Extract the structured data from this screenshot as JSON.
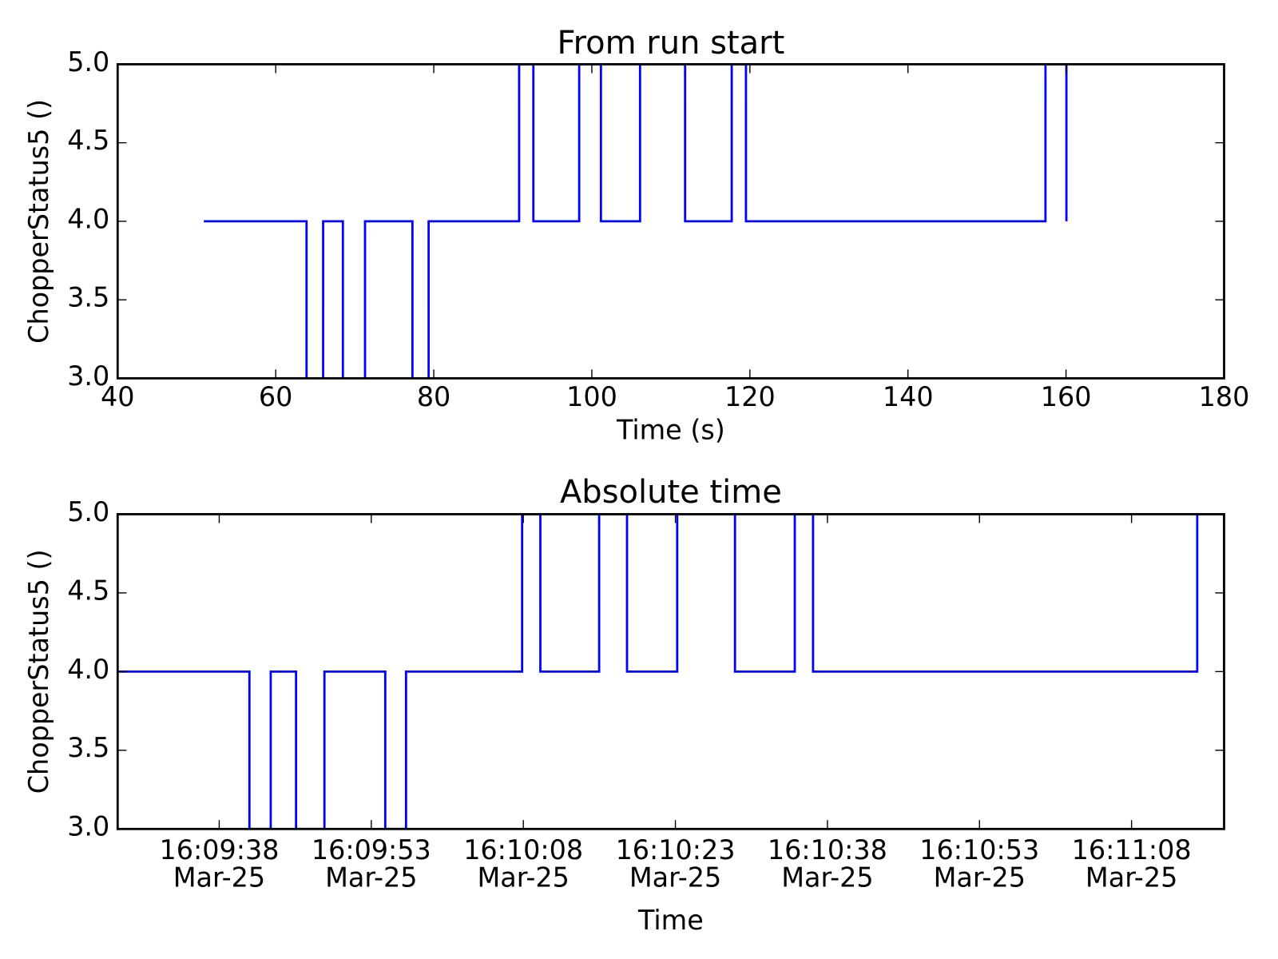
{
  "figure": {
    "background": "#ffffff",
    "axis_color": "#000000",
    "text_color": "#000000",
    "line_color": "#0000ff"
  },
  "chart_data": [
    {
      "type": "line",
      "step": "post",
      "title": "From run start",
      "xlabel": "Time (s)",
      "ylabel": "ChopperStatus5 ()",
      "xlim": [
        40,
        180
      ],
      "ylim": [
        3.0,
        5.0
      ],
      "grid": false,
      "legend": null,
      "xticks": [
        {
          "x": 40,
          "label": "40"
        },
        {
          "x": 60,
          "label": "60"
        },
        {
          "x": 80,
          "label": "80"
        },
        {
          "x": 100,
          "label": "100"
        },
        {
          "x": 120,
          "label": "120"
        },
        {
          "x": 140,
          "label": "140"
        },
        {
          "x": 160,
          "label": "160"
        },
        {
          "x": 180,
          "label": "180"
        }
      ],
      "yticks": [
        {
          "y": 3.0,
          "label": "3.0"
        },
        {
          "y": 3.5,
          "label": "3.5"
        },
        {
          "y": 4.0,
          "label": "4.0"
        },
        {
          "y": 4.5,
          "label": "4.5"
        },
        {
          "y": 5.0,
          "label": "5.0"
        }
      ],
      "points": [
        [
          50.9,
          4
        ],
        [
          63.9,
          3
        ],
        [
          66.0,
          4
        ],
        [
          68.5,
          3
        ],
        [
          71.3,
          4
        ],
        [
          77.3,
          3
        ],
        [
          79.35,
          4
        ],
        [
          90.8,
          5
        ],
        [
          92.6,
          4
        ],
        [
          98.4,
          5
        ],
        [
          101.15,
          4
        ],
        [
          106.1,
          5
        ],
        [
          111.8,
          4
        ],
        [
          117.7,
          5
        ],
        [
          119.5,
          4
        ],
        [
          157.4,
          5
        ],
        [
          160.05,
          4
        ]
      ]
    },
    {
      "type": "line",
      "step": "post",
      "title": "Absolute time",
      "xlabel": "Time",
      "ylabel": "ChopperStatus5 ()",
      "xlim": [
        50.9,
        160.05
      ],
      "ylim": [
        3.0,
        5.0
      ],
      "grid": false,
      "legend": null,
      "xticks": [
        {
          "x": 60.92,
          "label": [
            "16:09:38",
            "Mar-25"
          ]
        },
        {
          "x": 75.92,
          "label": [
            "16:09:53",
            "Mar-25"
          ]
        },
        {
          "x": 90.92,
          "label": [
            "16:10:08",
            "Mar-25"
          ]
        },
        {
          "x": 105.92,
          "label": [
            "16:10:23",
            "Mar-25"
          ]
        },
        {
          "x": 120.92,
          "label": [
            "16:10:38",
            "Mar-25"
          ]
        },
        {
          "x": 135.92,
          "label": [
            "16:10:53",
            "Mar-25"
          ]
        },
        {
          "x": 150.92,
          "label": [
            "16:11:08",
            "Mar-25"
          ]
        }
      ],
      "yticks": [
        {
          "y": 3.0,
          "label": "3.0"
        },
        {
          "y": 3.5,
          "label": "3.5"
        },
        {
          "y": 4.0,
          "label": "4.0"
        },
        {
          "y": 4.5,
          "label": "4.5"
        },
        {
          "y": 5.0,
          "label": "5.0"
        }
      ],
      "points": [
        [
          50.9,
          4
        ],
        [
          63.9,
          3
        ],
        [
          66.0,
          4
        ],
        [
          68.5,
          3
        ],
        [
          71.3,
          4
        ],
        [
          77.3,
          3
        ],
        [
          79.35,
          4
        ],
        [
          90.8,
          5
        ],
        [
          92.6,
          4
        ],
        [
          98.4,
          5
        ],
        [
          101.15,
          4
        ],
        [
          106.1,
          5
        ],
        [
          111.8,
          4
        ],
        [
          117.7,
          5
        ],
        [
          119.5,
          4
        ],
        [
          157.4,
          5
        ],
        [
          160.05,
          4
        ]
      ]
    }
  ]
}
